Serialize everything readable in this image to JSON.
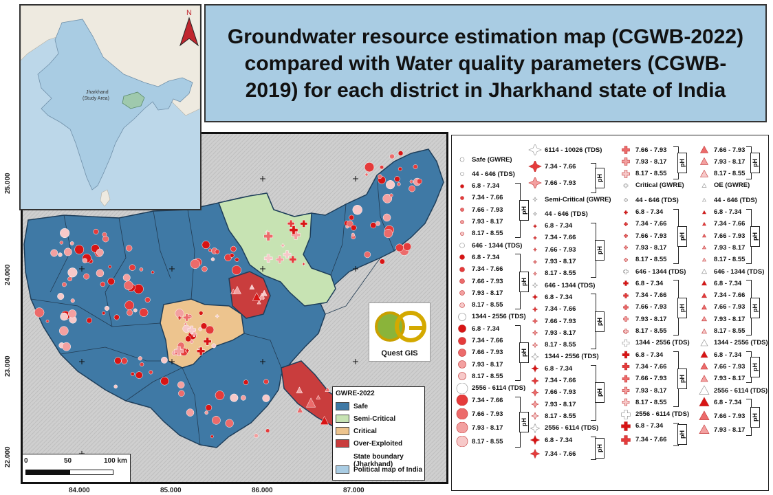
{
  "title": "Groundwater resource estimation map (CGWB-2022) compared with Water quality parameters (CGWB-2019) for each district in Jharkhand state of India",
  "inset": {
    "label_line1": "Jharkhand",
    "label_line2": "(Study Area)",
    "north": "N"
  },
  "axes": {
    "x_ticks": [
      "84.000",
      "85.000",
      "86.000",
      "87.000"
    ],
    "y_ticks": [
      "25.000",
      "24.000",
      "23.000",
      "22.000"
    ]
  },
  "scalebar": {
    "labels": [
      "0",
      "50",
      "100 km"
    ]
  },
  "logo": {
    "text": "Quest GIS",
    "letters": "QG"
  },
  "gwre_legend": {
    "title": "GWRE-2022",
    "items": [
      {
        "label": "Safe",
        "color": "#3f79a5"
      },
      {
        "label": "Semi-Critical",
        "color": "#c7e3b3"
      },
      {
        "label": "Critical",
        "color": "#edc48e"
      },
      {
        "label": "Over-Exploited",
        "color": "#c93d3d"
      },
      {
        "label": "State boundary (Jharkhand)",
        "color": ""
      },
      {
        "label": "Political map of India",
        "color": "#a9cce3"
      }
    ]
  },
  "legend": {
    "ph_label": "pH",
    "col1": {
      "header": "Safe (GWRE)",
      "groups": [
        {
          "tds": "44 - 646 (TDS)",
          "ph": [
            "6.8 - 7.34",
            "7.34 - 7.66",
            "7.66 - 7.93",
            "7.93 - 8.17",
            "8.17 - 8.55"
          ]
        },
        {
          "tds": "646 - 1344 (TDS)",
          "ph": [
            "6.8 - 7.34",
            "7.34 - 7.66",
            "7.66 - 7.93",
            "7.93 - 8.17",
            "8.17 - 8.55"
          ]
        },
        {
          "tds": "1344 - 2556 (TDS)",
          "ph": [
            "6.8 - 7.34",
            "7.34 - 7.66",
            "7.66 - 7.93",
            "7.93 - 8.17",
            "8.17 - 8.55"
          ]
        },
        {
          "tds": "2556 - 6114 (TDS)",
          "ph": [
            "7.34 - 7.66",
            "7.66 - 7.93",
            "7.93 - 8.17",
            "8.17 - 8.55"
          ]
        }
      ]
    },
    "col2": {
      "top_tds": "6114 - 10026 (TDS)",
      "top_ph": [
        "7.34 - 7.66",
        "7.66 - 7.93"
      ],
      "header": "Semi-Critical (GWRE)",
      "groups": [
        {
          "tds": "44 - 646 (TDS)",
          "ph": [
            "6.8 - 7.34",
            "7.34 - 7.66",
            "7.66 - 7.93",
            "7.93 - 8.17",
            "8.17 - 8.55"
          ]
        },
        {
          "tds": "646 - 1344 (TDS)",
          "ph": [
            "6.8 - 7.34",
            "7.34 - 7.66",
            "7.66 - 7.93",
            "7.93 - 8.17",
            "8.17 - 8.55"
          ]
        },
        {
          "tds": "1344 - 2556 (TDS)",
          "ph": [
            "6.8 - 7.34",
            "7.34 - 7.66",
            "7.66 - 7.93",
            "7.93 - 8.17",
            "8.17 - 8.55"
          ]
        },
        {
          "tds": "2556 - 6114 (TDS)",
          "ph": [
            "6.8 - 7.34",
            "7.34 - 7.66"
          ]
        }
      ]
    },
    "col3": {
      "top_ph": [
        "7.66 - 7.93",
        "7.93 - 8.17",
        "8.17 - 8.55"
      ],
      "header": "Critical (GWRE)",
      "groups": [
        {
          "tds": "44 - 646 (TDS)",
          "ph": [
            "6.8 - 7.34",
            "7.34 - 7.66",
            "7.66 - 7.93",
            "7.93 - 8.17",
            "8.17 - 8.55"
          ]
        },
        {
          "tds": "646 - 1344 (TDS)",
          "ph": [
            "6.8 - 7.34",
            "7.34 - 7.66",
            "7.66 - 7.93",
            "7.93 - 8.17",
            "8.17 - 8.55"
          ]
        },
        {
          "tds": "1344 - 2556 (TDS)",
          "ph": [
            "6.8 - 7.34",
            "7.34 - 7.66",
            "7.66 - 7.93",
            "7.93 - 8.17",
            "8.17 - 8.55"
          ]
        },
        {
          "tds": "2556 - 6114 (TDS)",
          "ph": [
            "6.8 - 7.34",
            "7.34 - 7.66"
          ]
        }
      ]
    },
    "col4": {
      "top_ph": [
        "7.66 - 7.93",
        "7.93 - 8.17",
        "8.17 - 8.55"
      ],
      "header": "OE (GWRE)",
      "groups": [
        {
          "tds": "44 - 646 (TDS)",
          "ph": [
            "6.8 - 7.34",
            "7.34 - 7.66",
            "7.66 - 7.93",
            "7.93 - 8.17",
            "8.17 - 8.55"
          ]
        },
        {
          "tds": "646 - 1344 (TDS)",
          "ph": [
            "6.8 - 7.34",
            "7.34 - 7.66",
            "7.66 - 7.93",
            "7.93 - 8.17",
            "8.17 - 8.55"
          ]
        },
        {
          "tds": "1344 - 2556 (TDS)",
          "ph": [
            "6.8 - 7.34",
            "7.66 - 7.93",
            "7.93 - 8.17"
          ]
        },
        {
          "tds": "2556 - 6114 (TDS)",
          "ph": [
            "6.8 - 7.34",
            "7.66 - 7.93",
            "7.93 - 8.17"
          ]
        }
      ]
    }
  },
  "symbol_colors": [
    "#d81414",
    "#e53b3b",
    "#ec6b6b",
    "#f3a0a0",
    "#f7c9c9",
    "#ffffff"
  ]
}
